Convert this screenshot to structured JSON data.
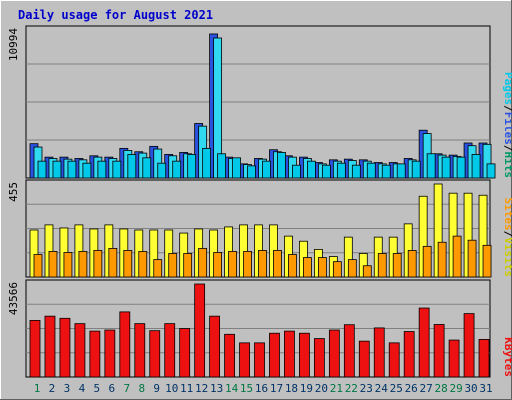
{
  "title": "Daily usage for August 2021",
  "colors": {
    "background": "#c0c0c0",
    "title": "#0000cc",
    "hits": "#2a52e0",
    "files": "#30d8f0",
    "pages": "#00c8e8",
    "visits": "#ffff33",
    "sites": "#ff9900",
    "kbytes": "#ee1111",
    "weekend_label": "#007744",
    "weekday_label": "#003366"
  },
  "chart_data": [
    {
      "type": "bar",
      "name": "hits-files-pages",
      "max_label": "10994",
      "legend": [
        {
          "text": "Hits",
          "color": "#009966"
        },
        {
          "text": "Files",
          "color": "#2a52e0"
        },
        {
          "text": "Pages",
          "color": "#00c8e8"
        }
      ],
      "categories": [
        "1",
        "2",
        "3",
        "4",
        "5",
        "6",
        "7",
        "8",
        "9",
        "10",
        "11",
        "12",
        "13",
        "14",
        "15",
        "16",
        "17",
        "18",
        "19",
        "20",
        "21",
        "22",
        "23",
        "24",
        "25",
        "26",
        "27",
        "28",
        "29",
        "30",
        "31"
      ],
      "ymax": 10994,
      "series": [
        {
          "name": "Hits",
          "values": [
            2550,
            1550,
            1550,
            1450,
            1650,
            1550,
            2200,
            1950,
            2350,
            1750,
            1900,
            4050,
            10700,
            1550,
            1050,
            1450,
            2100,
            1650,
            1550,
            1150,
            1350,
            1400,
            1350,
            1150,
            1150,
            1450,
            3550,
            1800,
            1700,
            2600,
            2600
          ]
        },
        {
          "name": "Files",
          "values": [
            2300,
            1450,
            1400,
            1350,
            1550,
            1450,
            2050,
            1850,
            2150,
            1650,
            1800,
            3850,
            10400,
            1450,
            1000,
            1400,
            1950,
            1550,
            1450,
            1050,
            1250,
            1300,
            1250,
            1050,
            1050,
            1350,
            3300,
            1700,
            1600,
            2400,
            2500
          ]
        },
        {
          "name": "Pages",
          "values": [
            1250,
            1250,
            1250,
            1100,
            1250,
            1250,
            1750,
            1500,
            1100,
            1250,
            1750,
            2200,
            1800,
            1500,
            900,
            1250,
            1900,
            950,
            1250,
            950,
            1100,
            950,
            1100,
            950,
            1050,
            1250,
            1800,
            1550,
            1550,
            1750,
            1050
          ]
        }
      ]
    },
    {
      "type": "bar",
      "name": "visits-sites",
      "max_label": "455",
      "legend": [
        {
          "text": "Visits",
          "color": "#cccc00"
        },
        {
          "text": "Sites",
          "color": "#ff9900"
        }
      ],
      "categories": [
        "1",
        "2",
        "3",
        "4",
        "5",
        "6",
        "7",
        "8",
        "9",
        "10",
        "11",
        "12",
        "13",
        "14",
        "15",
        "16",
        "17",
        "18",
        "19",
        "20",
        "21",
        "22",
        "23",
        "24",
        "25",
        "26",
        "27",
        "28",
        "29",
        "30",
        "31"
      ],
      "ymax": 455,
      "series": [
        {
          "name": "Visits",
          "values": [
            230,
            255,
            240,
            255,
            235,
            255,
            235,
            230,
            230,
            230,
            215,
            235,
            230,
            245,
            255,
            255,
            255,
            200,
            175,
            135,
            100,
            195,
            115,
            195,
            195,
            260,
            395,
            455,
            410,
            410,
            400
          ]
        },
        {
          "name": "Sites",
          "values": [
            110,
            125,
            120,
            125,
            130,
            140,
            130,
            125,
            85,
            115,
            115,
            140,
            120,
            125,
            125,
            130,
            130,
            110,
            95,
            95,
            75,
            85,
            55,
            115,
            115,
            130,
            150,
            170,
            200,
            180,
            155
          ]
        }
      ]
    },
    {
      "type": "bar",
      "name": "kbytes",
      "max_label": "43566",
      "legend": [
        {
          "text": "KBytes",
          "color": "#ee1111"
        }
      ],
      "categories": [
        "1",
        "2",
        "3",
        "4",
        "5",
        "6",
        "7",
        "8",
        "9",
        "10",
        "11",
        "12",
        "13",
        "14",
        "15",
        "16",
        "17",
        "18",
        "19",
        "20",
        "21",
        "22",
        "23",
        "24",
        "25",
        "26",
        "27",
        "28",
        "29",
        "30",
        "31"
      ],
      "ymax": 43566,
      "series": [
        {
          "name": "KBytes",
          "values": [
            26500,
            28500,
            27500,
            25000,
            21500,
            22000,
            30500,
            25000,
            21700,
            25000,
            22700,
            43566,
            28500,
            20000,
            16000,
            16000,
            20500,
            21500,
            20500,
            18000,
            22000,
            24500,
            16800,
            23000,
            16000,
            21300,
            32300,
            24600,
            17300,
            29700,
            17600
          ]
        }
      ]
    }
  ],
  "x_labels": [
    {
      "text": "1",
      "weekend": true
    },
    {
      "text": "2",
      "weekend": false
    },
    {
      "text": "3",
      "weekend": false
    },
    {
      "text": "4",
      "weekend": false
    },
    {
      "text": "5",
      "weekend": false
    },
    {
      "text": "6",
      "weekend": false
    },
    {
      "text": "7",
      "weekend": true
    },
    {
      "text": "8",
      "weekend": true
    },
    {
      "text": "9",
      "weekend": false
    },
    {
      "text": "10",
      "weekend": false
    },
    {
      "text": "11",
      "weekend": false
    },
    {
      "text": "12",
      "weekend": false
    },
    {
      "text": "13",
      "weekend": false
    },
    {
      "text": "14",
      "weekend": true
    },
    {
      "text": "15",
      "weekend": true
    },
    {
      "text": "16",
      "weekend": false
    },
    {
      "text": "17",
      "weekend": false
    },
    {
      "text": "18",
      "weekend": false
    },
    {
      "text": "19",
      "weekend": false
    },
    {
      "text": "20",
      "weekend": false
    },
    {
      "text": "21",
      "weekend": true
    },
    {
      "text": "22",
      "weekend": true
    },
    {
      "text": "23",
      "weekend": false
    },
    {
      "text": "24",
      "weekend": false
    },
    {
      "text": "25",
      "weekend": false
    },
    {
      "text": "26",
      "weekend": false
    },
    {
      "text": "27",
      "weekend": false
    },
    {
      "text": "28",
      "weekend": true
    },
    {
      "text": "29",
      "weekend": true
    },
    {
      "text": "30",
      "weekend": false
    },
    {
      "text": "31",
      "weekend": false
    }
  ]
}
